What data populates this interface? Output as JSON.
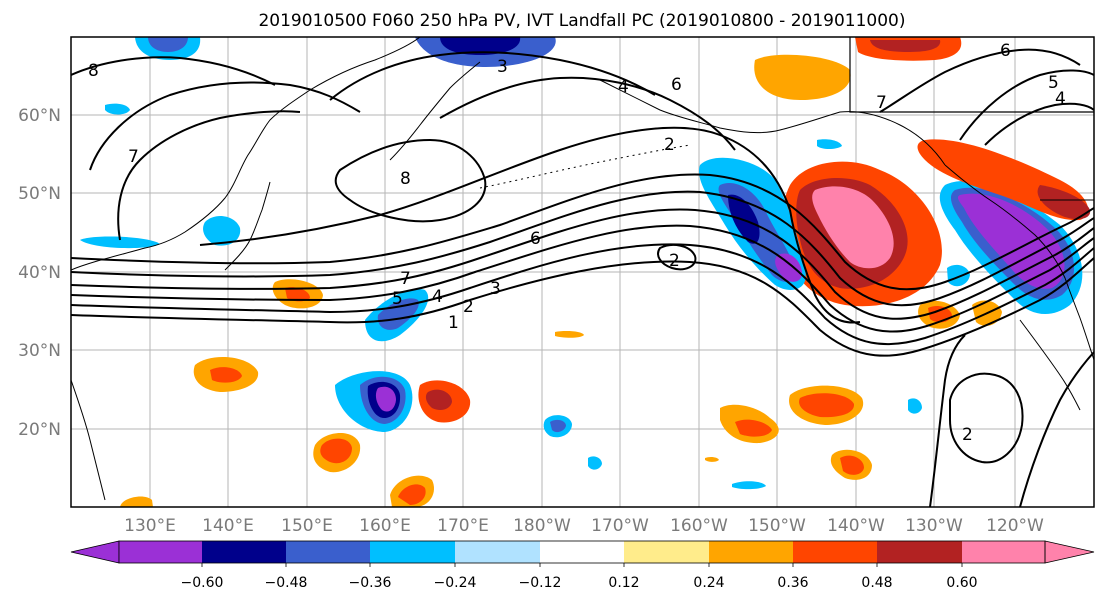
{
  "title": "2019010500 F060 250 hPa PV, IVT Landfall PC (2019010800 - 2019011000)",
  "lat_labels": [
    "60°N",
    "50°N",
    "40°N",
    "30°N",
    "20°N"
  ],
  "lon_labels": [
    "130°E",
    "140°E",
    "150°E",
    "160°E",
    "170°E",
    "180°W",
    "170°W",
    "160°W",
    "150°W",
    "140°W",
    "130°W",
    "120°W"
  ],
  "colorbar": {
    "colors": [
      "#9b30d6",
      "#00008b",
      "#3a5fcd",
      "#00bfff",
      "#b0e2ff",
      "#ffffff",
      "#ffec8b",
      "#ffa500",
      "#ff4500",
      "#b22222",
      "#ff82ab"
    ],
    "tick_labels": [
      "−0.60",
      "−0.48",
      "−0.36",
      "−0.24",
      "−0.12",
      "0.12",
      "0.24",
      "0.36",
      "0.48",
      "0.60"
    ]
  },
  "contour_labels": [
    "8",
    "7",
    "3",
    "4",
    "6",
    "2",
    "8",
    "6",
    "2",
    "7",
    "5",
    "4",
    "2",
    "1",
    "3",
    "6",
    "5",
    "4",
    "2",
    "7"
  ]
}
